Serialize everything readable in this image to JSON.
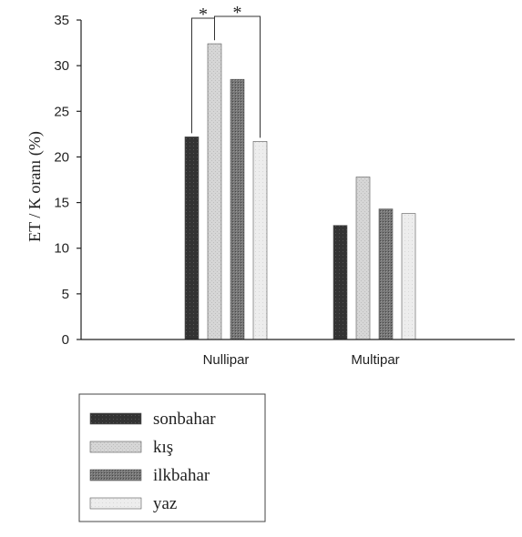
{
  "chart_data": {
    "type": "bar",
    "title": "",
    "xlabel": "",
    "ylabel": "ET / K oranı (%)",
    "ylim": [
      0,
      35
    ],
    "yticks": [
      0,
      5,
      10,
      15,
      20,
      25,
      30,
      35
    ],
    "categories": [
      "Nullipar",
      "Multipar"
    ],
    "series": [
      {
        "name": "sonbahar",
        "values": [
          22.2,
          12.5
        ],
        "color": "#3c3c3c"
      },
      {
        "name": "kış",
        "values": [
          32.4,
          17.8
        ],
        "color": "#d4d4d4"
      },
      {
        "name": "ilkbahar",
        "values": [
          28.5,
          14.3
        ],
        "color": "#6a6a6a"
      },
      {
        "name": "yaz",
        "values": [
          21.7,
          13.8
        ],
        "color": "#ececec"
      }
    ],
    "annotations": [
      {
        "text": "*",
        "category": "Nullipar",
        "from_series": 0,
        "to_series": 1
      },
      {
        "text": "*",
        "category": "Nullipar",
        "from_series": 1,
        "to_series": 3
      }
    ],
    "legend_position": "bottom-left",
    "grid": false
  }
}
